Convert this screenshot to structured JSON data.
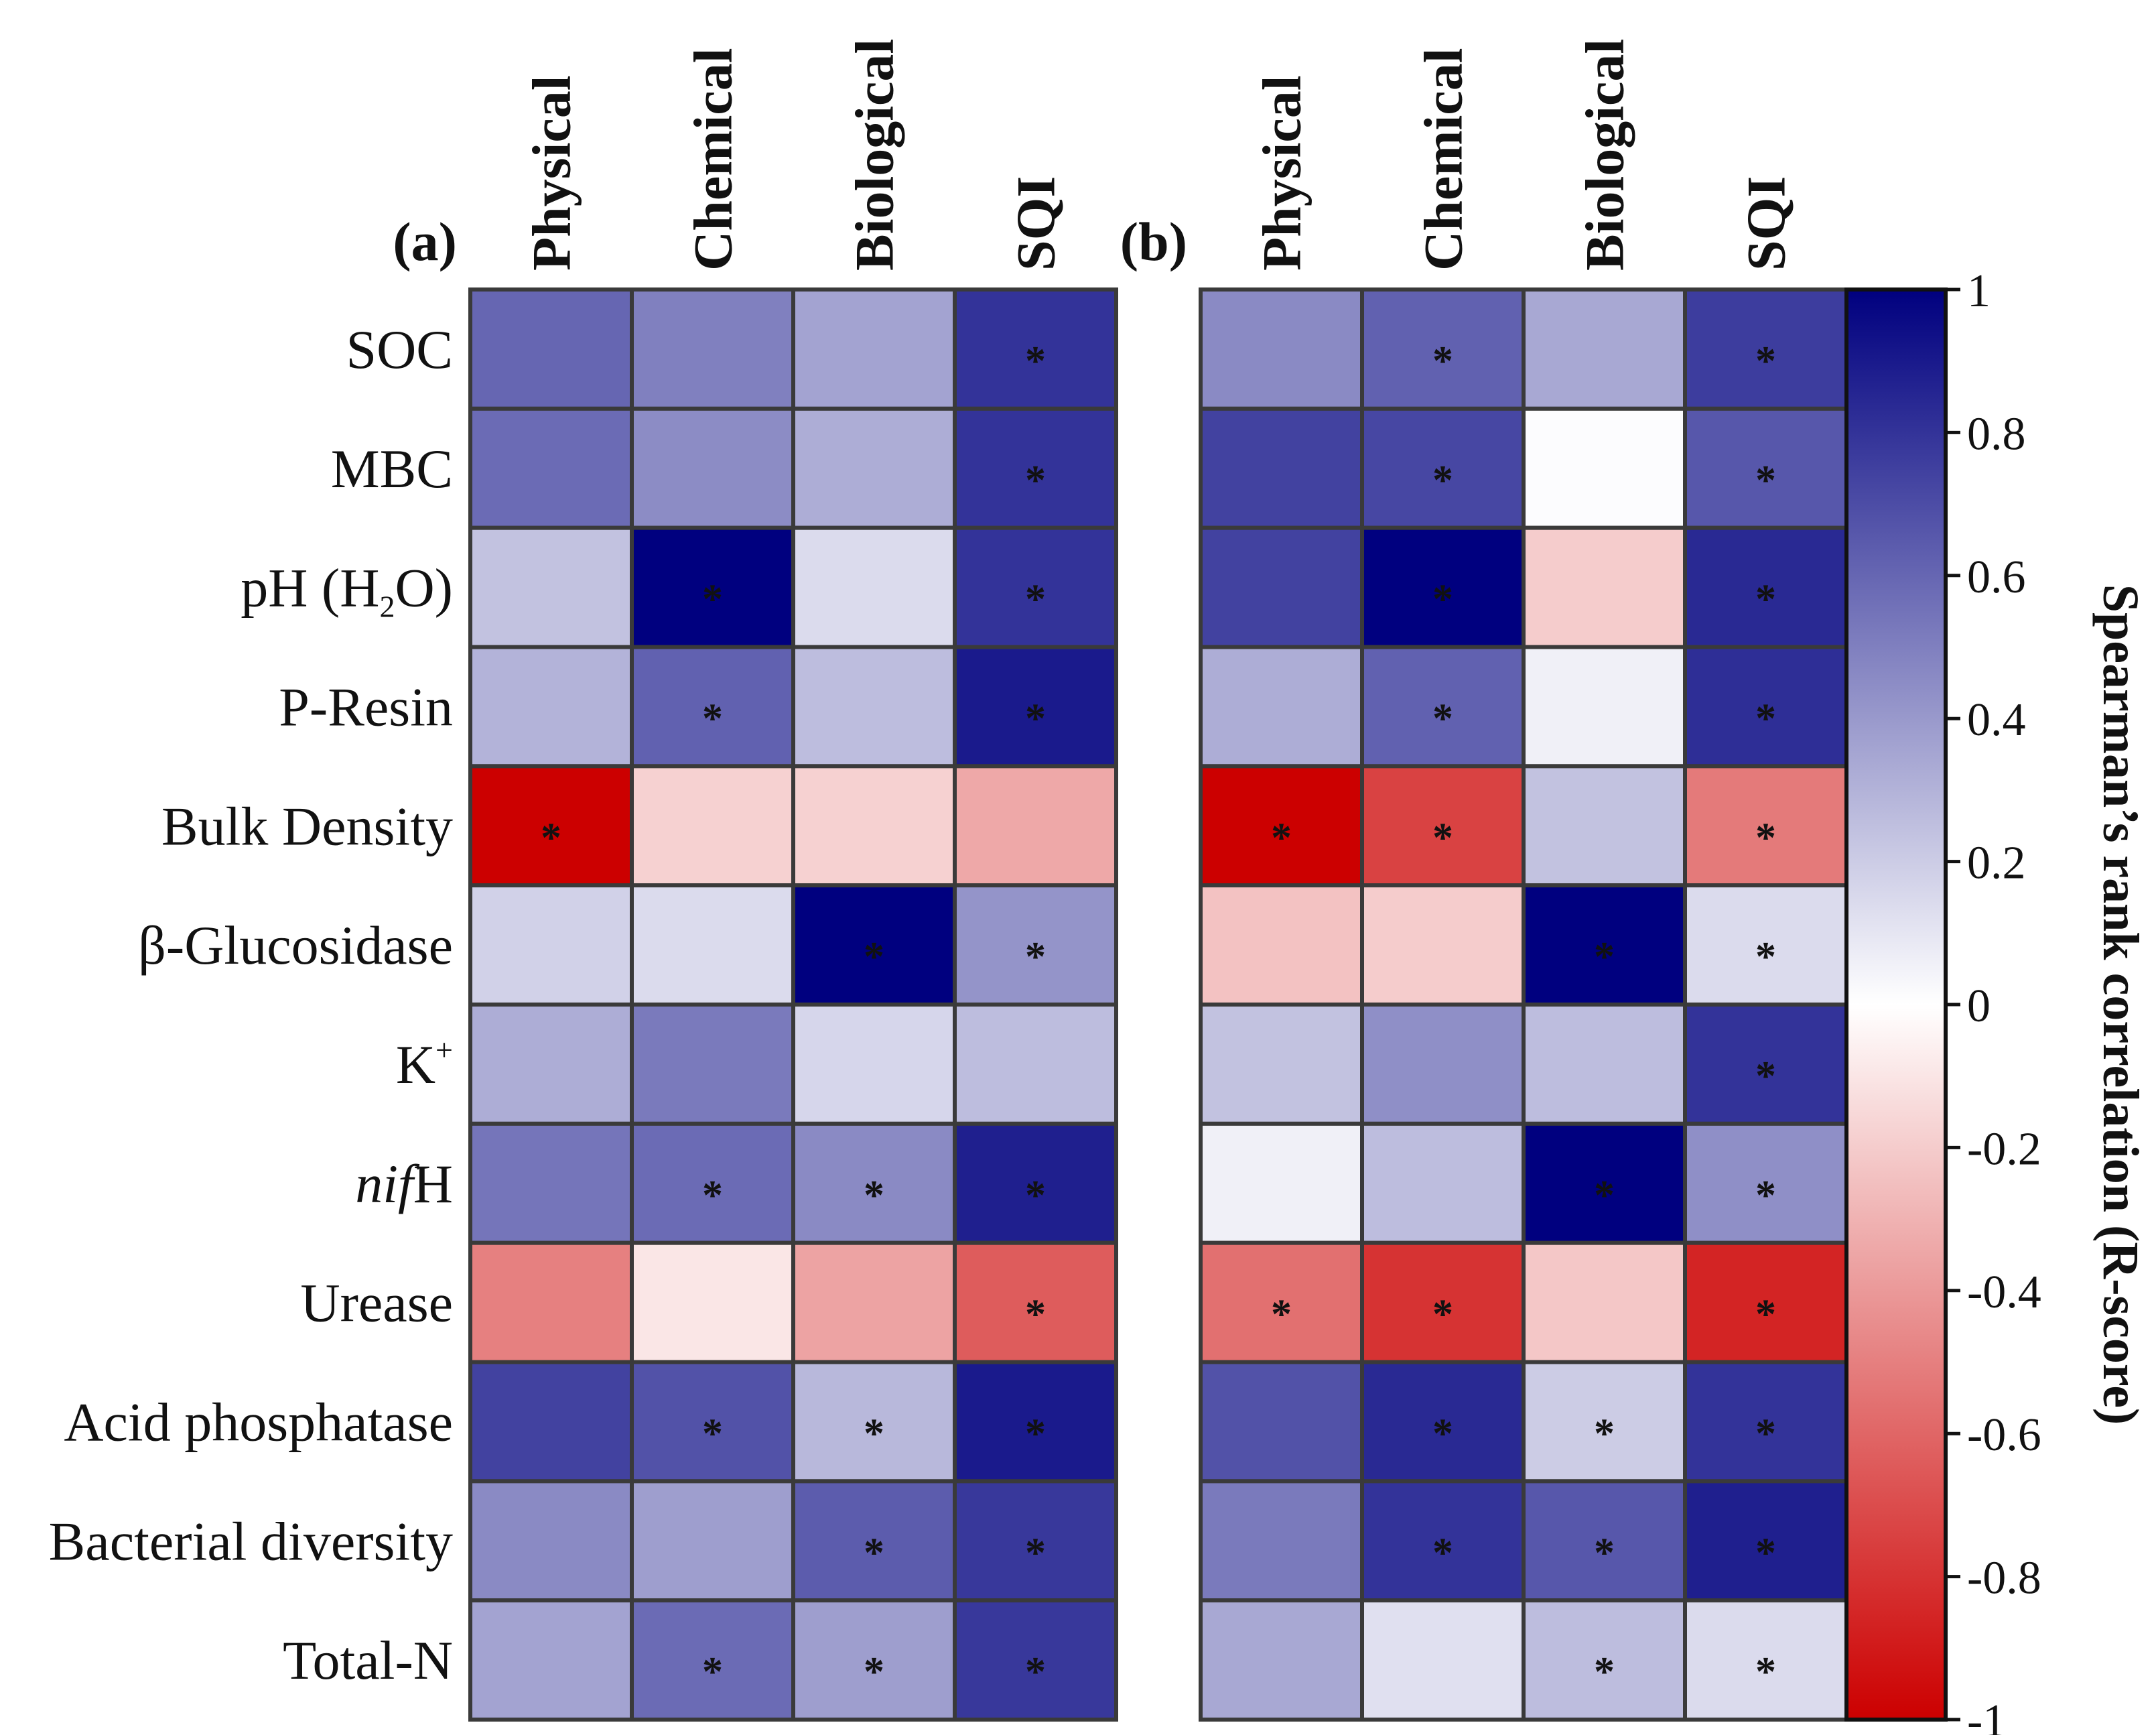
{
  "chart_data": {
    "type": "heatmap",
    "colorbar": {
      "title": "Spearman’s rank correlation (R-score)",
      "range": [
        -1,
        1
      ],
      "ticks": [
        "1",
        "0.8",
        "0.6",
        "0.4",
        "0.2",
        "0",
        "-0.2",
        "-0.4",
        "-0.6",
        "-0.8",
        "-1"
      ],
      "colors": {
        "negative": "#cc0000",
        "zero": "#ffffff",
        "positive": "#00007f"
      }
    },
    "significance_marker": "*",
    "rows": [
      {
        "label": "SOC"
      },
      {
        "label": "MBC"
      },
      {
        "label": "pH (H",
        "sub": "2",
        "tail": "O)"
      },
      {
        "label": "P-Resin"
      },
      {
        "label": "Bulk Density"
      },
      {
        "label": "β-Glucosidase"
      },
      {
        "label": "K",
        "sup": "+"
      },
      {
        "label": "H",
        "italic_prefix": "nif"
      },
      {
        "label": "Urease"
      },
      {
        "label": "Acid phosphatase"
      },
      {
        "label": "Bacterial diversity"
      },
      {
        "label": "Total-N"
      }
    ],
    "panels": [
      {
        "label": "(a)",
        "columns": [
          "Physical",
          "Chemical",
          "Biological",
          "SQI"
        ],
        "values": [
          [
            0.6,
            0.5,
            0.36,
            0.8
          ],
          [
            0.58,
            0.45,
            0.32,
            0.8
          ],
          [
            0.24,
            1.0,
            0.14,
            0.8
          ],
          [
            0.3,
            0.62,
            0.26,
            0.9
          ],
          [
            -1.0,
            -0.18,
            -0.18,
            -0.34
          ],
          [
            0.18,
            0.14,
            1.0,
            0.42
          ],
          [
            0.32,
            0.52,
            0.16,
            0.26
          ],
          [
            0.54,
            0.58,
            0.46,
            0.88
          ],
          [
            -0.5,
            -0.1,
            -0.36,
            -0.64
          ],
          [
            0.74,
            0.68,
            0.28,
            0.9
          ],
          [
            0.46,
            0.38,
            0.64,
            0.78
          ],
          [
            0.36,
            0.58,
            0.38,
            0.78
          ]
        ],
        "significant": [
          [
            false,
            false,
            false,
            true
          ],
          [
            false,
            false,
            false,
            true
          ],
          [
            false,
            true,
            false,
            true
          ],
          [
            false,
            true,
            false,
            true
          ],
          [
            true,
            false,
            false,
            false
          ],
          [
            false,
            false,
            true,
            true
          ],
          [
            false,
            false,
            false,
            false
          ],
          [
            false,
            true,
            true,
            true
          ],
          [
            false,
            false,
            false,
            true
          ],
          [
            false,
            true,
            true,
            true
          ],
          [
            false,
            false,
            true,
            true
          ],
          [
            false,
            true,
            true,
            true
          ]
        ]
      },
      {
        "label": "(b)",
        "columns": [
          "Physical",
          "Chemical",
          "Biological",
          "SQI"
        ],
        "values": [
          [
            0.46,
            0.62,
            0.34,
            0.76
          ],
          [
            0.74,
            0.72,
            0.01,
            0.66
          ],
          [
            0.74,
            1.0,
            -0.2,
            0.84
          ],
          [
            0.32,
            0.62,
            0.06,
            0.82
          ],
          [
            -1.0,
            -0.74,
            0.24,
            -0.52
          ],
          [
            -0.24,
            -0.2,
            1.0,
            0.14
          ],
          [
            0.24,
            0.44,
            0.26,
            0.8
          ],
          [
            0.06,
            0.26,
            1.0,
            0.44
          ],
          [
            -0.56,
            -0.8,
            -0.22,
            -0.86
          ],
          [
            0.68,
            0.84,
            0.2,
            0.8
          ],
          [
            0.52,
            0.8,
            0.66,
            0.88
          ],
          [
            0.34,
            0.12,
            0.26,
            0.14
          ]
        ],
        "significant": [
          [
            false,
            true,
            false,
            true
          ],
          [
            false,
            true,
            false,
            true
          ],
          [
            false,
            true,
            false,
            true
          ],
          [
            false,
            true,
            false,
            true
          ],
          [
            true,
            true,
            false,
            true
          ],
          [
            false,
            false,
            true,
            true
          ],
          [
            false,
            false,
            false,
            true
          ],
          [
            false,
            false,
            true,
            true
          ],
          [
            true,
            true,
            false,
            true
          ],
          [
            false,
            true,
            true,
            true
          ],
          [
            false,
            true,
            true,
            true
          ],
          [
            false,
            false,
            true,
            true
          ]
        ]
      }
    ]
  }
}
